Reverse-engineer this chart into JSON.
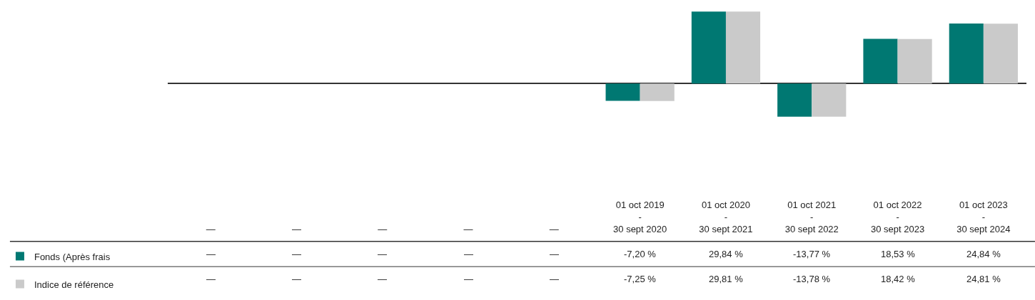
{
  "chart_data": {
    "type": "bar",
    "categories": [
      "—",
      "—",
      "—",
      "—",
      "—",
      "01 oct 2019\n-\n30 sept 2020",
      "01 oct 2020\n-\n30 sept 2021",
      "01 oct 2021\n-\n30 sept 2022",
      "01 oct 2022\n-\n30 sept 2023",
      "01 oct 2023\n-\n30 sept 2024"
    ],
    "series": [
      {
        "name": "Fonds (Après frais",
        "color": "#007872",
        "values": [
          null,
          null,
          null,
          null,
          null,
          -7.2,
          29.84,
          -13.77,
          18.53,
          24.84
        ],
        "value_labels": [
          "—",
          "—",
          "—",
          "—",
          "—",
          "-7,20 %",
          "29,84 %",
          "-13,77 %",
          "18,53 %",
          "24,84 %"
        ]
      },
      {
        "name": "Indice de référence",
        "color": "#cacaca",
        "values": [
          null,
          null,
          null,
          null,
          null,
          -7.25,
          29.81,
          -13.78,
          18.42,
          24.81
        ],
        "value_labels": [
          "—",
          "—",
          "—",
          "—",
          "—",
          "-7,25 %",
          "29,81 %",
          "-13,78 %",
          "18,42 %",
          "24,81 %"
        ]
      }
    ],
    "legend": "bottom left"
  }
}
